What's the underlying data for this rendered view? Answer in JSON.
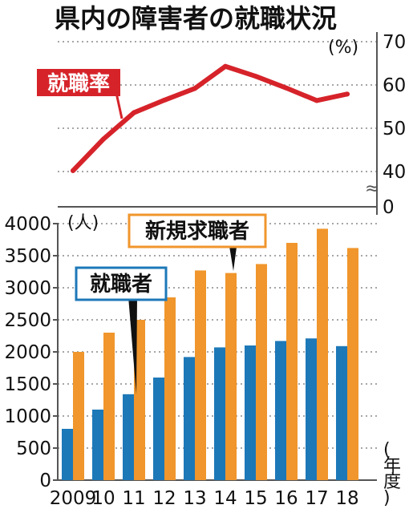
{
  "chart_data": [
    {
      "type": "line",
      "title": "県内の障害者の就職状況",
      "unit_label": "(%)",
      "series": [
        {
          "name": "就職率",
          "color": "#d6232a",
          "values": [
            40.2,
            47.5,
            53.6,
            56.5,
            59.2,
            64.3,
            62.0,
            59.3,
            56.4,
            57.9
          ]
        }
      ],
      "yticks": [
        "70",
        "60",
        "50",
        "40",
        "0"
      ],
      "ylim": [
        40,
        70
      ],
      "axis_break": "≈",
      "grid": true
    },
    {
      "type": "bar",
      "categories": [
        "2009",
        "10",
        "11",
        "12",
        "13",
        "14",
        "15",
        "16",
        "17",
        "18"
      ],
      "unit_label": "(人)",
      "xlabel": "(年度)",
      "ylim": [
        0,
        4000
      ],
      "yticks": [
        "4000",
        "3500",
        "3000",
        "2500",
        "2000",
        "1500",
        "1000",
        "500",
        "0"
      ],
      "grid": true,
      "series": [
        {
          "name": "就職者",
          "color": "#1d78b8",
          "values": [
            800,
            1100,
            1340,
            1600,
            1920,
            2070,
            2100,
            2170,
            2210,
            2090
          ]
        },
        {
          "name": "新規求職者",
          "color": "#f0962c",
          "values": [
            2000,
            2300,
            2500,
            2850,
            3270,
            3230,
            3370,
            3700,
            3920,
            3620
          ]
        }
      ]
    }
  ]
}
